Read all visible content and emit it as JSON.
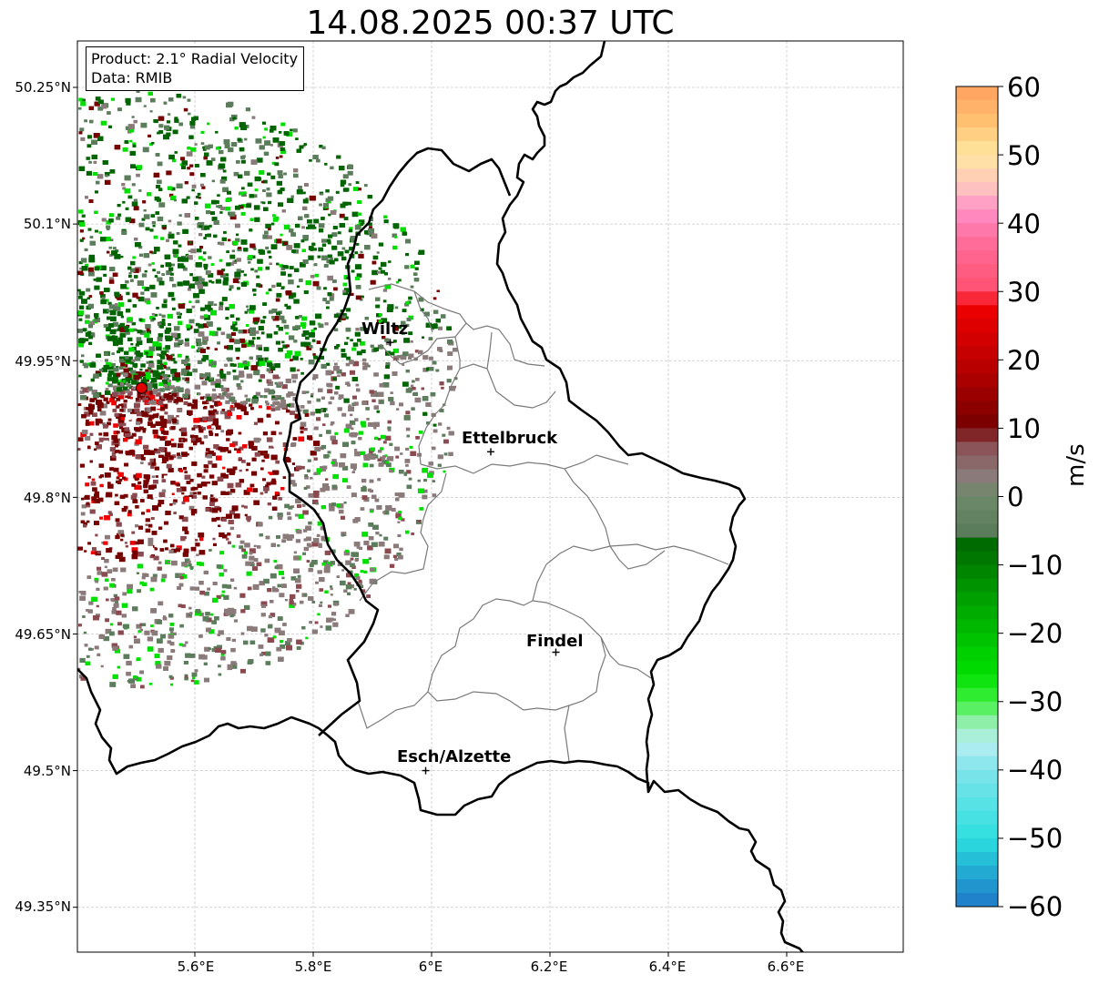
{
  "title": "14.08.2025 00:37 UTC",
  "info_box": {
    "product": "Product: 2.1° Radial Velocity",
    "data": "Data: RMIB"
  },
  "axes": {
    "lat_ticks": [
      "50.25°N",
      "50.1°N",
      "49.95°N",
      "49.8°N",
      "49.65°N",
      "49.5°N",
      "49.35°N"
    ],
    "lon_ticks": [
      "5.6°E",
      "5.8°E",
      "6°E",
      "6.2°E",
      "6.4°E",
      "6.6°E"
    ]
  },
  "cities": [
    {
      "name": "Wiltz",
      "lon": 5.93,
      "lat": 49.97
    },
    {
      "name": "Ettelbruck",
      "lon": 6.1,
      "lat": 49.85
    },
    {
      "name": "Findel",
      "lon": 6.21,
      "lat": 49.63
    },
    {
      "name": "Esch/Alzette",
      "lon": 5.99,
      "lat": 49.5
    }
  ],
  "radar_site": {
    "lon": 5.51,
    "lat": 49.92,
    "color": "#e00000"
  },
  "colorbar": {
    "unit": "m/s",
    "min": -60,
    "max": 60,
    "ticks": [
      "60",
      "50",
      "40",
      "30",
      "20",
      "10",
      "0",
      "−10",
      "−20",
      "−30",
      "−40",
      "−50",
      "−60"
    ],
    "colors": {
      "neg_max": "#1f78c8",
      "cyan": "#2ee0e0",
      "light_cyan": "#b8eef0",
      "light_green": "#8ef0a8",
      "bright_green": "#00e000",
      "dark_green": "#006400",
      "gray_green": "#5c7d5c",
      "gray": "#8a7a7a",
      "mauve": "#8a4a50",
      "dark_red": "#760000",
      "red": "#f00000",
      "pink_red": "#ff5070",
      "pink": "#ff90c8",
      "light_pink": "#ffc0c0",
      "pale_yellow": "#ffe8a0",
      "orange": "#ffa060"
    }
  }
}
